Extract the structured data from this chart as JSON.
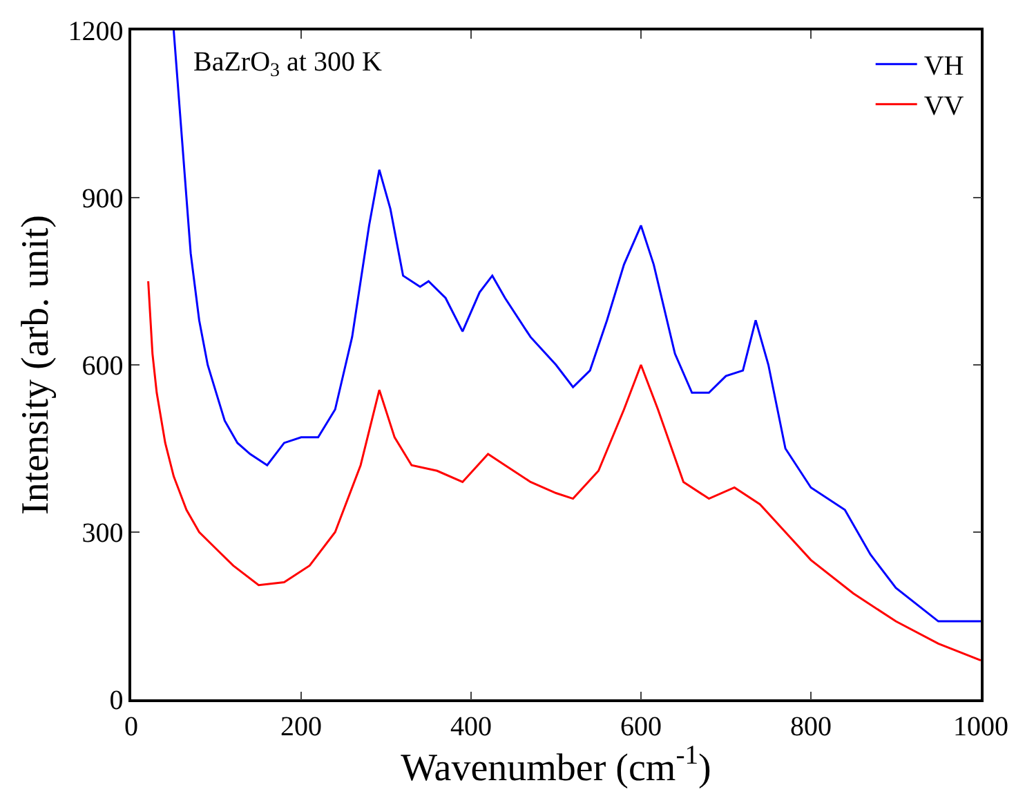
{
  "chart_data": {
    "type": "line",
    "xlabel": "Wavenumber (cm$^{-1}$)",
    "ylabel": "Intensity (arb. unit)",
    "annotations": [
      "BaZrO$_{3}$ at 300 K"
    ],
    "xlim": [
      0,
      1000
    ],
    "ylim": [
      0,
      1200
    ],
    "xticks": [
      0,
      200,
      400,
      600,
      800,
      1000
    ],
    "yticks": [
      0,
      300,
      600,
      900,
      1200
    ],
    "legend": "top right",
    "marker": "none",
    "line_style": "solid",
    "series": [
      {
        "name": "VH",
        "color": "#0000ff",
        "x": [
          50,
          60,
          70,
          80,
          90,
          100,
          110,
          125,
          140,
          160,
          180,
          200,
          220,
          240,
          260,
          280,
          292,
          305,
          320,
          340,
          350,
          370,
          390,
          410,
          425,
          440,
          470,
          500,
          520,
          540,
          560,
          580,
          600,
          615,
          640,
          660,
          680,
          700,
          720,
          735,
          750,
          770,
          800,
          840,
          870,
          900,
          950,
          1000
        ],
        "values": [
          1200,
          1000,
          800,
          680,
          600,
          550,
          500,
          460,
          440,
          420,
          460,
          470,
          470,
          520,
          650,
          850,
          950,
          880,
          760,
          740,
          750,
          720,
          660,
          730,
          760,
          720,
          650,
          600,
          560,
          590,
          680,
          780,
          850,
          780,
          620,
          550,
          550,
          580,
          590,
          680,
          600,
          450,
          380,
          340,
          260,
          200,
          140,
          140
        ]
      },
      {
        "name": "VV",
        "color": "#ff0000",
        "x": [
          20,
          25,
          30,
          40,
          50,
          65,
          80,
          100,
          120,
          150,
          180,
          210,
          240,
          270,
          292,
          310,
          330,
          360,
          390,
          420,
          440,
          470,
          500,
          520,
          550,
          580,
          600,
          620,
          650,
          680,
          710,
          740,
          770,
          800,
          850,
          900,
          950,
          1000
        ],
        "values": [
          750,
          620,
          550,
          460,
          400,
          340,
          300,
          270,
          240,
          205,
          210,
          240,
          300,
          420,
          555,
          470,
          420,
          410,
          390,
          440,
          420,
          390,
          370,
          360,
          410,
          520,
          600,
          520,
          390,
          360,
          380,
          350,
          300,
          250,
          190,
          140,
          100,
          70
        ]
      }
    ]
  }
}
